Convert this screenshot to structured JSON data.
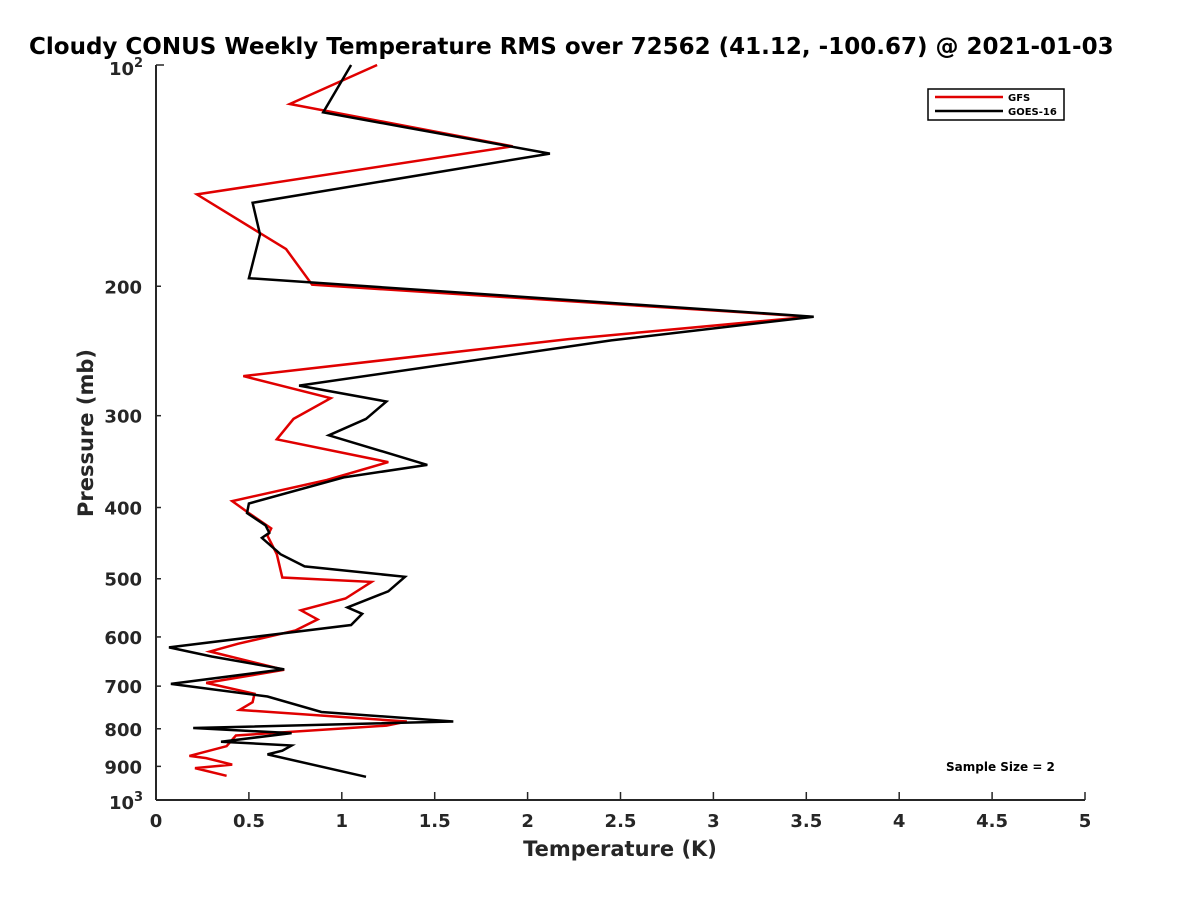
{
  "chart_data": {
    "type": "line",
    "title": "Cloudy CONUS Weekly Temperature RMS over 72562 (41.12, -100.67) @ 2021-01-03",
    "xlabel": "Temperature (K)",
    "ylabel": "Pressure (mb)",
    "xlim": [
      0,
      5
    ],
    "ylim": [
      100,
      1000
    ],
    "yscale": "log",
    "y_reversed": true,
    "grid": false,
    "legend_position": "top-right",
    "x_ticks": [
      "0",
      "0.5",
      "1",
      "1.5",
      "2",
      "2.5",
      "3",
      "3.5",
      "4",
      "4.5",
      "5"
    ],
    "y_ticks": [
      "200",
      "300",
      "400",
      "500",
      "600",
      "700",
      "800",
      "900"
    ],
    "y_tick_100_base": "10",
    "y_tick_100_exp": "2",
    "y_tick_1000_base": "10",
    "y_tick_1000_exp": "3",
    "annotation": "Sample Size = 2",
    "series": [
      {
        "name": "GFS",
        "color": "#e00000",
        "points": [
          [
            1.19,
            100
          ],
          [
            0.72,
            113
          ],
          [
            1.92,
            129
          ],
          [
            0.22,
            150
          ],
          [
            0.7,
            178
          ],
          [
            0.84,
            199
          ],
          [
            3.52,
            220
          ],
          [
            2.22,
            236
          ],
          [
            0.47,
            265
          ],
          [
            0.94,
            284
          ],
          [
            0.74,
            303
          ],
          [
            0.65,
            323
          ],
          [
            1.25,
            347
          ],
          [
            0.92,
            367
          ],
          [
            0.41,
            392
          ],
          [
            0.5,
            407
          ],
          [
            0.62,
            427
          ],
          [
            0.6,
            437
          ],
          [
            0.65,
            463
          ],
          [
            0.68,
            498
          ],
          [
            1.16,
            505
          ],
          [
            1.02,
            532
          ],
          [
            0.78,
            552
          ],
          [
            0.87,
            568
          ],
          [
            0.75,
            588
          ],
          [
            0.44,
            613
          ],
          [
            0.29,
            628
          ],
          [
            0.69,
            665
          ],
          [
            0.27,
            693
          ],
          [
            0.53,
            717
          ],
          [
            0.52,
            736
          ],
          [
            0.45,
            754
          ],
          [
            1.35,
            782
          ],
          [
            1.24,
            792
          ],
          [
            0.43,
            817
          ],
          [
            0.38,
            845
          ],
          [
            0.18,
            871
          ],
          [
            0.27,
            877
          ],
          [
            0.41,
            895
          ],
          [
            0.21,
            905
          ],
          [
            0.38,
            927
          ]
        ]
      },
      {
        "name": "GOES-16",
        "color": "#000000",
        "points": [
          [
            1.05,
            100
          ],
          [
            0.9,
            116
          ],
          [
            2.12,
            132
          ],
          [
            0.52,
            154
          ],
          [
            0.56,
            170
          ],
          [
            0.5,
            195
          ],
          [
            3.54,
            220
          ],
          [
            2.45,
            237
          ],
          [
            0.77,
            273
          ],
          [
            1.24,
            287
          ],
          [
            1.13,
            303
          ],
          [
            0.93,
            319
          ],
          [
            1.46,
            350
          ],
          [
            1.01,
            364
          ],
          [
            0.5,
            395
          ],
          [
            0.49,
            407
          ],
          [
            0.59,
            423
          ],
          [
            0.61,
            433
          ],
          [
            0.57,
            440
          ],
          [
            0.67,
            463
          ],
          [
            0.8,
            481
          ],
          [
            1.34,
            497
          ],
          [
            1.25,
            520
          ],
          [
            1.03,
            547
          ],
          [
            1.11,
            558
          ],
          [
            1.05,
            578
          ],
          [
            0.07,
            620
          ],
          [
            0.3,
            638
          ],
          [
            0.69,
            664
          ],
          [
            0.08,
            695
          ],
          [
            0.6,
            723
          ],
          [
            0.89,
            759
          ],
          [
            1.6,
            782
          ],
          [
            0.2,
            798
          ],
          [
            0.73,
            811
          ],
          [
            0.35,
            833
          ],
          [
            0.73,
            843
          ],
          [
            0.68,
            857
          ],
          [
            0.6,
            867
          ],
          [
            1.13,
            930
          ]
        ]
      }
    ]
  }
}
